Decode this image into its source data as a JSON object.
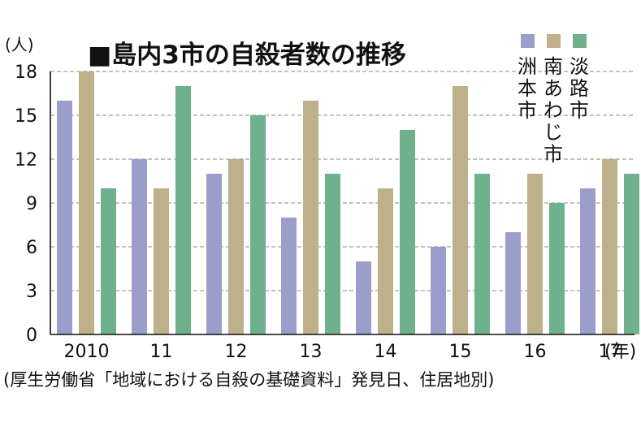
{
  "chart_data": {
    "type": "bar",
    "title": "■島内3市の自殺者数の推移",
    "ylabel": "(人)",
    "xunit": "(年)",
    "categories": [
      "2010",
      "11",
      "12",
      "13",
      "14",
      "15",
      "16",
      "17"
    ],
    "series": [
      {
        "name": "洲本市",
        "color": "#9b9ecb",
        "values": [
          16,
          12,
          11,
          8,
          5,
          6,
          7,
          10
        ]
      },
      {
        "name": "南あわじ市",
        "color": "#bfb08c",
        "values": [
          18,
          10,
          12,
          16,
          10,
          17,
          11,
          12
        ]
      },
      {
        "name": "淡路市",
        "color": "#6fb08d",
        "values": [
          10,
          17,
          15,
          11,
          14,
          11,
          9,
          11
        ]
      }
    ],
    "yticks": [
      0,
      3,
      6,
      9,
      12,
      15,
      18
    ],
    "ylim": [
      0,
      18
    ],
    "grid": "dashed horizontal",
    "legend": "top-right, vertical labels",
    "source": "(厚生労働省「地域における自殺の基礎資料」発見日、住居地別)"
  }
}
